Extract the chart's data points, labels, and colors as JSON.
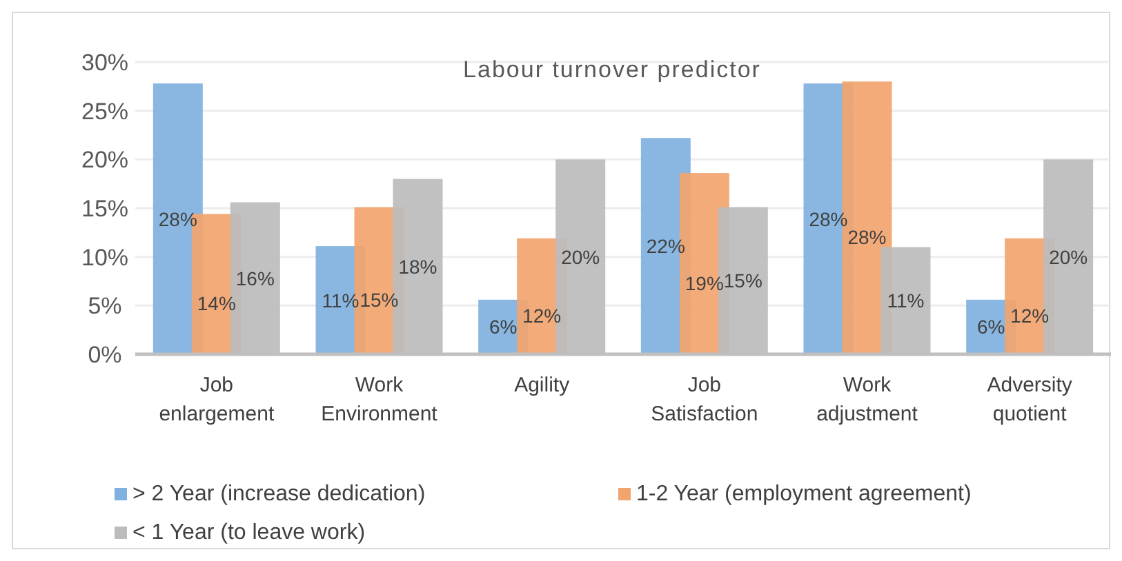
{
  "chart_data": {
    "type": "bar",
    "title": "Labour turnover predictor",
    "categories": [
      "Job enlargement",
      "Work Environment",
      "Agility",
      "Job Satisfaction",
      "Work adjustment",
      "Adversity quotient"
    ],
    "series": [
      {
        "name": "> 2 Year (increase dedication)",
        "color": "#7fb1e0",
        "values": [
          27.8,
          11.1,
          5.6,
          22.2,
          27.8,
          5.6
        ],
        "value_labels": [
          "28%",
          "11%",
          "6%",
          "22%",
          "28%",
          "6%"
        ]
      },
      {
        "name": "1-2 Year (employment agreement)",
        "color": "#f2a46e",
        "values": [
          14.4,
          15.1,
          11.9,
          18.6,
          28.0,
          11.9
        ],
        "value_labels": [
          "14%",
          "15%",
          "12%",
          "19%",
          "28%",
          "12%"
        ]
      },
      {
        "name": "< 1 Year (to leave work)",
        "color": "#bcbcbc",
        "values": [
          15.6,
          18.0,
          20.0,
          15.1,
          11.0,
          20.0
        ],
        "value_labels": [
          "16%",
          "18%",
          "20%",
          "15%",
          "11%",
          "20%"
        ]
      }
    ],
    "ylim": [
      0,
      30
    ],
    "yticks": [
      {
        "value": 0,
        "label": "0%"
      },
      {
        "value": 5,
        "label": "5%"
      },
      {
        "value": 10,
        "label": "10%"
      },
      {
        "value": 15,
        "label": "15%"
      },
      {
        "value": 20,
        "label": "20%"
      },
      {
        "value": 25,
        "label": "25%"
      },
      {
        "value": 30,
        "label": "30%"
      }
    ],
    "grid": "y",
    "legend": "bottom"
  }
}
